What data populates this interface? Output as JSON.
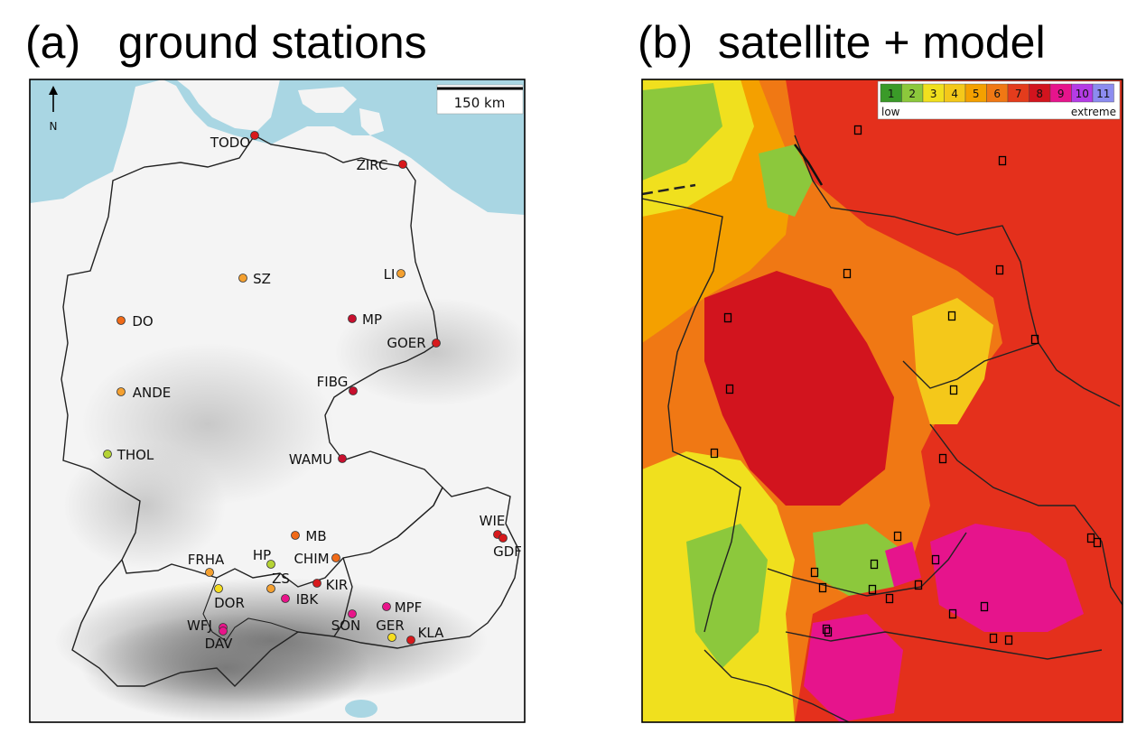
{
  "panel_a": {
    "title": "(a)   ground stations",
    "scale_label": "150 km",
    "north_label": "N",
    "stations": [
      {
        "name": "TODO",
        "color": "#d7191c"
      },
      {
        "name": "ZIRC",
        "color": "#d7191c"
      },
      {
        "name": "SZ",
        "color": "#f4a030"
      },
      {
        "name": "LI",
        "color": "#f4a030"
      },
      {
        "name": "DO",
        "color": "#f06a18"
      },
      {
        "name": "MP",
        "color": "#c8102e"
      },
      {
        "name": "GOER",
        "color": "#d7191c"
      },
      {
        "name": "ANDE",
        "color": "#f4a030"
      },
      {
        "name": "FIBG",
        "color": "#c8102e"
      },
      {
        "name": "THOL",
        "color": "#b5d334"
      },
      {
        "name": "WAMU",
        "color": "#c8102e"
      },
      {
        "name": "WIE",
        "color": "#d7191c"
      },
      {
        "name": "GDF",
        "color": "#d7191c"
      },
      {
        "name": "MB",
        "color": "#f06a18"
      },
      {
        "name": "FRHA",
        "color": "#f4a030"
      },
      {
        "name": "HP",
        "color": "#b5d334"
      },
      {
        "name": "CHIM",
        "color": "#f06a18"
      },
      {
        "name": "ZS",
        "color": "#f4a030"
      },
      {
        "name": "KIR",
        "color": "#d7191c"
      },
      {
        "name": "DOR",
        "color": "#f5dd1e"
      },
      {
        "name": "IBK",
        "color": "#e8148a"
      },
      {
        "name": "MPF",
        "color": "#e8148a"
      },
      {
        "name": "SON",
        "color": "#e8148a"
      },
      {
        "name": "WFJ",
        "color": "#e8148a"
      },
      {
        "name": "GER",
        "color": "#f5dd1e"
      },
      {
        "name": "KLA",
        "color": "#d7191c"
      },
      {
        "name": "DAV",
        "color": "#e8148a"
      }
    ]
  },
  "panel_b": {
    "title": "(b)  satellite + model",
    "legend": {
      "classes": [
        "1",
        "2",
        "3",
        "4",
        "5",
        "6",
        "7",
        "8",
        "9",
        "10",
        "11"
      ],
      "colors": [
        "#3a9a28",
        "#8cc83c",
        "#f0e01e",
        "#f4c81a",
        "#f4a000",
        "#f07814",
        "#e43c1c",
        "#d2141e",
        "#e6148c",
        "#b43ce6",
        "#8c8cf0"
      ],
      "low_label": "low",
      "high_label": "extreme"
    }
  }
}
